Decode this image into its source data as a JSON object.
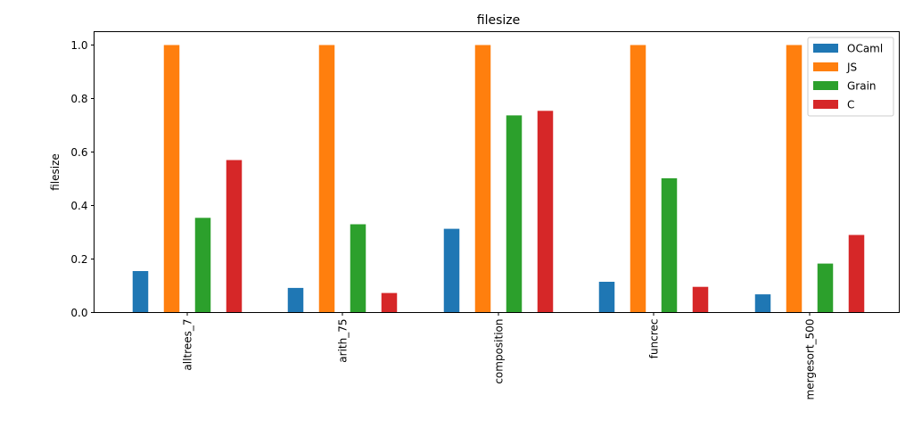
{
  "chart_data": {
    "type": "bar",
    "title": "filesize",
    "xlabel": "",
    "ylabel": "filesize",
    "categories": [
      "alltrees_7",
      "arith_75",
      "composition",
      "funcrec",
      "mergesort_500"
    ],
    "yticks": [
      "0.0",
      "0.2",
      "0.4",
      "0.6",
      "0.8",
      "1.0"
    ],
    "ylim": [
      0,
      1.05
    ],
    "legend_position": "top-right",
    "grid": false,
    "series": [
      {
        "name": "OCaml",
        "color": "#1f77b4",
        "values": [
          0.155,
          0.092,
          0.313,
          0.115,
          0.068
        ]
      },
      {
        "name": "JS",
        "color": "#ff7f0e",
        "values": [
          1.0,
          1.0,
          1.0,
          1.0,
          1.0
        ]
      },
      {
        "name": "Grain",
        "color": "#2ca02c",
        "values": [
          0.354,
          0.33,
          0.737,
          0.502,
          0.183
        ]
      },
      {
        "name": "C",
        "color": "#d62728",
        "values": [
          0.57,
          0.073,
          0.754,
          0.096,
          0.29
        ]
      }
    ]
  }
}
